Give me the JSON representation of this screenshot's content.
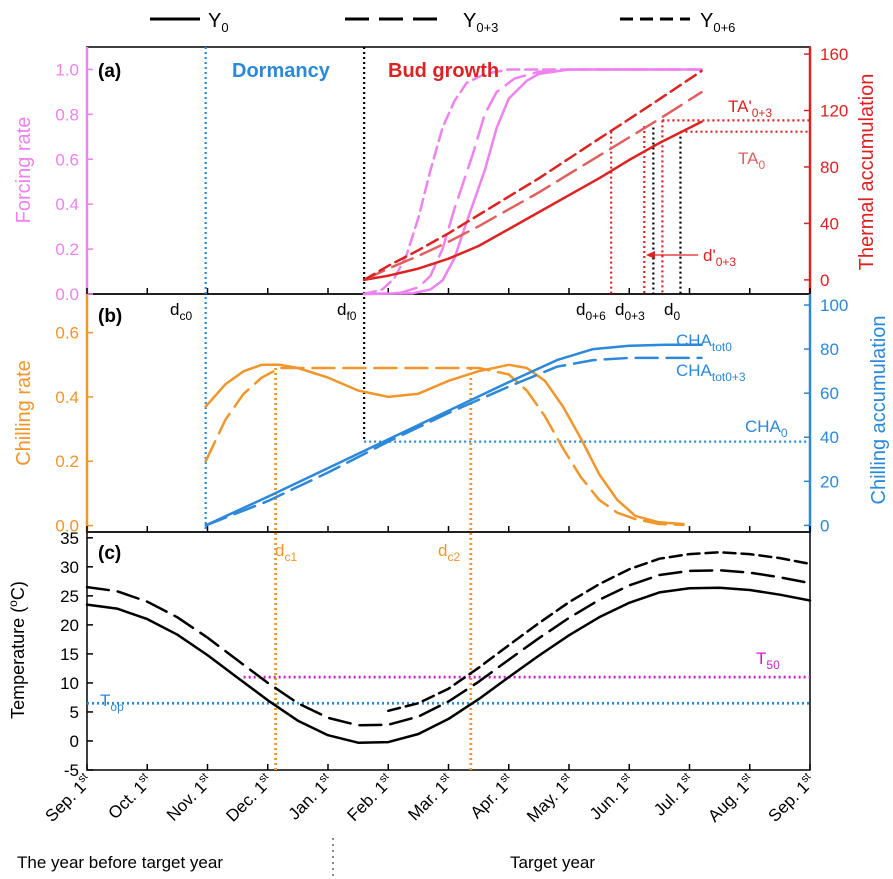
{
  "legend": {
    "items": [
      {
        "text": "Y",
        "sub": "0",
        "dash": "solid"
      },
      {
        "text": "Y",
        "sub": "0+3",
        "dash": "long"
      },
      {
        "text": "Y",
        "sub": "0+6",
        "dash": "short"
      }
    ]
  },
  "colors": {
    "forcing": "#ee82ee",
    "thermal": "#dd2222",
    "chilling_rate": "#f0962a",
    "chilling_acc": "#2c88d9",
    "temperature": "#000000",
    "t50": "#cc22cc",
    "guide_black": "#000000"
  },
  "x_axis": {
    "ticks": [
      "Sep. 1st",
      "Oct. 1st",
      "Nov. 1st",
      "Dec. 1st",
      "Jan. 1st",
      "Feb. 1st",
      "Mar. 1st",
      "Apr. 1st",
      "May. 1st",
      "Jun. 1st",
      "Jul. 1st",
      "Aug. 1st",
      "Sep. 1st"
    ],
    "tick_main": [
      "Sep. 1",
      "Oct. 1",
      "Nov. 1",
      "Dec. 1",
      "Jan. 1",
      "Feb. 1",
      "Mar. 1",
      "Apr. 1",
      "May. 1",
      "Jun. 1",
      "Jul. 1",
      "Aug. 1",
      "Sep. 1"
    ],
    "tick_sup": "st",
    "year_before_label": "The year before target year",
    "target_year_label": "Target year"
  },
  "chart_data": [
    {
      "panel": "(a)",
      "type": "line",
      "x_unit": "month index from Sep. 1st (0 = Sep. 1st, 12 = Sep. 1st)",
      "phase_labels": [
        "Dormancy",
        "Bud growth"
      ],
      "y_left": {
        "label": "Forcing rate",
        "range": [
          0,
          1.1
        ],
        "ticks": [
          "0.0",
          "0.2",
          "0.4",
          "0.6",
          "0.8",
          "1.0"
        ]
      },
      "y_right": {
        "label": "Thermal accumulation",
        "range": [
          -10,
          165
        ],
        "ticks": [
          "0",
          "40",
          "80",
          "120",
          "160"
        ]
      },
      "series": [
        {
          "name": "Y0 forcing rate",
          "axis": "left",
          "style": "solid",
          "x": [
            4.6,
            5.4,
            5.7,
            5.9,
            6.1,
            6.3,
            6.6,
            6.8,
            7.0,
            7.3,
            7.5,
            8.0,
            9.0,
            10.0,
            10.2
          ],
          "y": [
            0.0,
            0.003,
            0.02,
            0.06,
            0.16,
            0.32,
            0.55,
            0.74,
            0.87,
            0.95,
            0.98,
            1.0,
            1.0,
            1.0,
            1.0
          ]
        },
        {
          "name": "Y0+3 forcing rate",
          "axis": "left",
          "style": "long-dash",
          "x": [
            4.6,
            5.2,
            5.5,
            5.7,
            5.9,
            6.1,
            6.4,
            6.6,
            6.8,
            7.1,
            7.5,
            8.0,
            9.0,
            10.2
          ],
          "y": [
            0.0,
            0.005,
            0.03,
            0.08,
            0.2,
            0.38,
            0.62,
            0.8,
            0.9,
            0.96,
            0.99,
            1.0,
            1.0,
            1.0
          ]
        },
        {
          "name": "Y0+6 forcing rate",
          "axis": "left",
          "style": "short-dash",
          "x": [
            4.6,
            4.9,
            5.1,
            5.3,
            5.5,
            5.7,
            5.9,
            6.1,
            6.3,
            6.6,
            7.0,
            7.5,
            8.5,
            10.2
          ],
          "y": [
            0.0,
            0.02,
            0.07,
            0.17,
            0.34,
            0.55,
            0.74,
            0.86,
            0.94,
            0.98,
            1.0,
            1.0,
            1.0,
            1.0
          ]
        },
        {
          "name": "Y0 thermal accumulation",
          "axis": "right",
          "style": "solid",
          "x": [
            4.6,
            5.0,
            5.5,
            6.0,
            6.5,
            7.0,
            7.5,
            8.0,
            8.5,
            9.0,
            9.5,
            10.2
          ],
          "y": [
            0,
            3,
            8,
            15,
            24,
            36,
            48,
            60,
            72,
            85,
            97,
            112
          ]
        },
        {
          "name": "Y0+3 thermal accumulation",
          "axis": "right",
          "style": "long-dash",
          "x": [
            4.6,
            5.0,
            5.5,
            6.0,
            6.5,
            7.0,
            7.5,
            8.0,
            8.5,
            9.0,
            9.5,
            10.2
          ],
          "y": [
            0,
            8,
            17,
            27,
            38,
            50,
            62,
            75,
            88,
            101,
            114,
            133
          ]
        },
        {
          "name": "Y0+6 thermal accumulation",
          "axis": "right",
          "style": "short-dash",
          "x": [
            4.6,
            5.0,
            5.5,
            6.0,
            6.5,
            7.0,
            7.5,
            8.0,
            8.5,
            9.0,
            9.5,
            10.2
          ],
          "y": [
            0,
            10,
            21,
            33,
            46,
            59,
            72,
            86,
            100,
            114,
            128,
            148
          ]
        }
      ],
      "guides": {
        "TA0": 105,
        "TA_prime_0_3": 113,
        "d0": 9.85,
        "d0_3": 9.4,
        "d0_6": 8.7,
        "d_prime_0_3": 9.55,
        "df0": 4.6,
        "dc0": 1.97
      }
    },
    {
      "panel": "(b)",
      "type": "line",
      "x_unit": "month index from Sep. 1st",
      "y_left": {
        "label": "Chilling rate",
        "range": [
          -0.02,
          0.72
        ],
        "ticks": [
          "0.0",
          "0.2",
          "0.4",
          "0.6"
        ]
      },
      "y_right": {
        "label": "Chilling accumulation",
        "range": [
          -3,
          105
        ],
        "ticks": [
          "0",
          "20",
          "40",
          "60",
          "80",
          "100"
        ]
      },
      "series": [
        {
          "name": "Y0 chilling rate",
          "axis": "left",
          "style": "solid",
          "x": [
            1.97,
            2.3,
            2.6,
            2.9,
            3.2,
            3.5,
            4.0,
            4.5,
            5.0,
            5.5,
            6.0,
            6.5,
            7.0,
            7.3,
            7.6,
            7.9,
            8.2,
            8.5,
            8.8,
            9.1,
            9.5,
            9.9
          ],
          "y": [
            0.37,
            0.44,
            0.48,
            0.5,
            0.5,
            0.49,
            0.46,
            0.42,
            0.4,
            0.41,
            0.45,
            0.48,
            0.5,
            0.49,
            0.45,
            0.37,
            0.27,
            0.16,
            0.08,
            0.03,
            0.01,
            0.005
          ]
        },
        {
          "name": "Y0+3 chilling rate",
          "axis": "left",
          "style": "long-dash",
          "x": [
            1.97,
            2.3,
            2.6,
            2.9,
            3.2,
            3.6,
            4.0,
            4.5,
            5.0,
            5.5,
            6.0,
            6.5,
            7.0,
            7.3,
            7.6,
            7.9,
            8.2,
            8.5,
            8.8,
            9.1,
            9.5,
            9.9
          ],
          "y": [
            0.2,
            0.33,
            0.41,
            0.46,
            0.49,
            0.49,
            0.49,
            0.49,
            0.49,
            0.49,
            0.49,
            0.49,
            0.47,
            0.42,
            0.34,
            0.24,
            0.15,
            0.08,
            0.04,
            0.02,
            0.005,
            0.002
          ]
        },
        {
          "name": "CHA tot0",
          "axis": "right",
          "style": "solid",
          "x": [
            1.97,
            3.0,
            4.0,
            5.0,
            6.0,
            7.0,
            7.8,
            8.4,
            9.0,
            9.6,
            10.2
          ],
          "y": [
            0,
            13,
            26,
            39,
            52,
            65,
            75,
            80,
            81.5,
            82,
            82
          ]
        },
        {
          "name": "CHA tot0+3",
          "axis": "right",
          "style": "long-dash",
          "x": [
            1.97,
            3.0,
            4.0,
            5.0,
            6.0,
            7.0,
            7.8,
            8.4,
            9.0,
            9.6,
            10.2
          ],
          "y": [
            0,
            11,
            24,
            38,
            51,
            63,
            72,
            75,
            76,
            76,
            76
          ]
        }
      ],
      "labels": [
        "CHA",
        "tot0",
        "CHA",
        "tot0+3",
        "CHA",
        "0"
      ],
      "guides": {
        "CHA0": 38,
        "dc1": 3.13,
        "dc2": 6.37
      }
    },
    {
      "panel": "(c)",
      "type": "line",
      "x_unit": "month index from Sep. 1st",
      "y": {
        "label": "Temperature (oC)",
        "range": [
          -5,
          36
        ],
        "ticks": [
          "-5",
          "0",
          "5",
          "10",
          "15",
          "20",
          "25",
          "30",
          "35"
        ]
      },
      "series": [
        {
          "name": "Y0 temperature",
          "style": "solid",
          "x": [
            0,
            0.5,
            1,
            1.5,
            2,
            2.5,
            3,
            3.5,
            4,
            4.5,
            5,
            5.5,
            6,
            6.5,
            7,
            7.5,
            8,
            8.5,
            9,
            9.5,
            10,
            10.5,
            11,
            11.5,
            12
          ],
          "y": [
            23.5,
            22.8,
            21.0,
            18.3,
            14.8,
            10.9,
            7.0,
            3.5,
            1.0,
            -0.3,
            -0.2,
            1.2,
            3.8,
            7.2,
            11.0,
            14.7,
            18.2,
            21.3,
            23.8,
            25.6,
            26.3,
            26.4,
            26.0,
            25.2,
            24.2
          ]
        },
        {
          "name": "Y0+3 temperature",
          "style": "long-dash",
          "x": [
            0,
            0.5,
            1,
            1.5,
            2,
            2.5,
            3,
            3.5,
            4,
            4.5,
            5,
            5.5,
            6,
            6.5,
            7,
            7.5,
            8,
            8.5,
            9,
            9.5,
            10,
            10.5,
            11,
            11.5,
            12
          ],
          "y": [
            26.5,
            25.8,
            24.0,
            21.3,
            17.8,
            13.9,
            10.0,
            6.5,
            4.0,
            2.7,
            2.8,
            4.2,
            6.8,
            10.2,
            14.0,
            17.7,
            21.2,
            24.3,
            26.8,
            28.6,
            29.3,
            29.4,
            29.0,
            28.2,
            27.2
          ]
        },
        {
          "name": "Y0+6 temperature",
          "style": "short-dash",
          "x": [
            5,
            5.5,
            6,
            6.5,
            7,
            7.5,
            8,
            8.5,
            9,
            9.5,
            10,
            10.5,
            11,
            11.5,
            12
          ],
          "y": [
            5.2,
            6.5,
            9.0,
            12.6,
            16.5,
            20.3,
            23.9,
            27.0,
            29.6,
            31.4,
            32.2,
            32.5,
            32.2,
            31.5,
            30.5
          ]
        }
      ],
      "guides": {
        "T50": 11,
        "Top": 6.5,
        "T50_x_start": 2.6,
        "dc1": 3.13,
        "dc2": 6.37
      }
    }
  ],
  "labels": {
    "panel_a": "(a)",
    "panel_b": "(b)",
    "panel_c": "(c)",
    "dormancy": "Dormancy",
    "bud_growth": "Bud growth",
    "forcing_rate": "Forcing rate",
    "thermal_accumulation": "Thermal accumulation",
    "chilling_rate": "Chilling rate",
    "chilling_accumulation": "Chilling accumulation",
    "temperature": "Temperature (",
    "temperature_sup": "o",
    "temperature_tail": "C)",
    "ta_prime": "TA'",
    "ta_prime_sub": "0+3",
    "ta0": "TA",
    "ta0_sub": "0",
    "d_prime": "d'",
    "d_prime_sub": "0+3",
    "dc0": "d",
    "dc0_sub": "c0",
    "df0": "d",
    "df0_sub": "f0",
    "d06": "d",
    "d06_sub": "0+6",
    "d03": "d",
    "d03_sub": "0+3",
    "d0": "d",
    "d0_sub": "0",
    "cha_tot0": "CHA",
    "cha_tot0_sub": "tot0",
    "cha_tot03": "CHA",
    "cha_tot03_sub": "tot0+3",
    "cha0": "CHA",
    "cha0_sub": "0",
    "dc1": "d",
    "dc1_sub": "c1",
    "dc2": "d",
    "dc2_sub": "c2",
    "t50": "T",
    "t50_sub": "50",
    "top": "T",
    "top_sub": "op"
  }
}
